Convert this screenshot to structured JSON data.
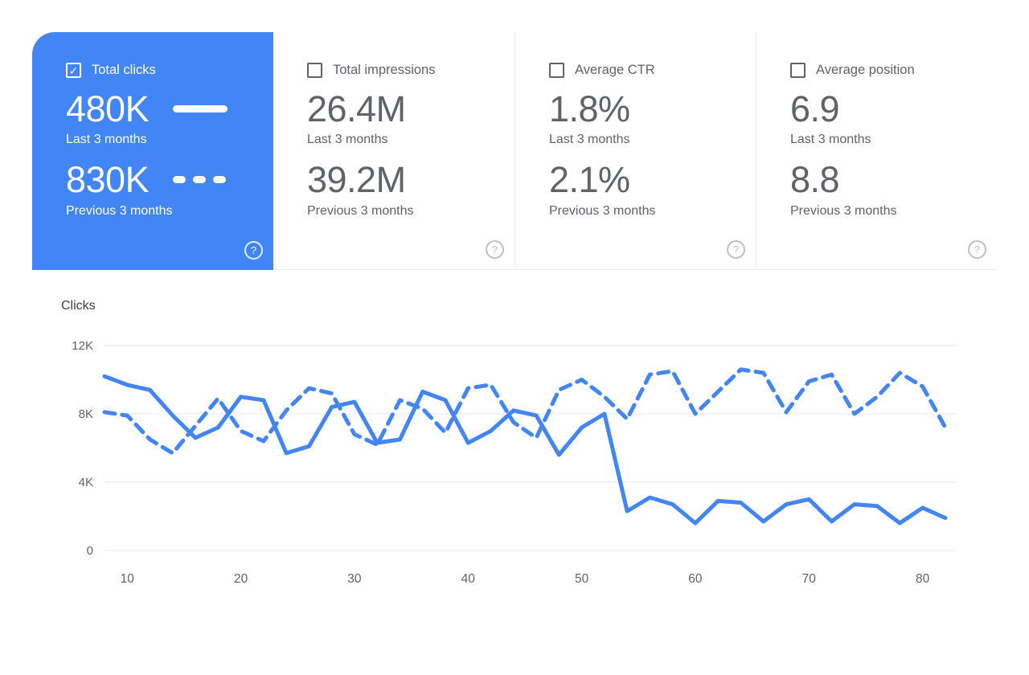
{
  "ui": {
    "check_glyph": "✓",
    "help_glyph": "?"
  },
  "colors": {
    "accent": "#4285f4",
    "muted_text": "#5f6368",
    "grid": "#e8eaed",
    "selected_card_bg": "#4285f4"
  },
  "cards": [
    {
      "label": "Total clicks",
      "checked": true,
      "selected": true,
      "primary_value": "480K",
      "primary_caption": "Last 3 months",
      "secondary_value": "830K",
      "secondary_caption": "Previous 3 months"
    },
    {
      "label": "Total impressions",
      "checked": false,
      "selected": false,
      "primary_value": "26.4M",
      "primary_caption": "Last 3 months",
      "secondary_value": "39.2M",
      "secondary_caption": "Previous 3 months"
    },
    {
      "label": "Average CTR",
      "checked": false,
      "selected": false,
      "primary_value": "1.8%",
      "primary_caption": "Last 3 months",
      "secondary_value": "2.1%",
      "secondary_caption": "Previous 3 months"
    },
    {
      "label": "Average position",
      "checked": false,
      "selected": false,
      "primary_value": "6.9",
      "primary_caption": "Last 3 months",
      "secondary_value": "8.8",
      "secondary_caption": "Previous 3 months"
    }
  ],
  "chart_data": {
    "type": "line",
    "title": "Clicks",
    "ylabel": "Clicks",
    "xlabel": "",
    "grid": true,
    "line_color": "#4285f4",
    "xlim": [
      8,
      83
    ],
    "ylim": [
      0,
      12000
    ],
    "x_ticks": [
      10,
      20,
      30,
      40,
      50,
      60,
      70,
      80
    ],
    "y_ticks": [
      "0",
      "4K",
      "8K",
      "12K"
    ],
    "y_tick_values": [
      0,
      4000,
      8000,
      12000
    ],
    "x": [
      8,
      10,
      12,
      14,
      16,
      18,
      20,
      22,
      24,
      26,
      28,
      30,
      32,
      34,
      36,
      38,
      40,
      42,
      44,
      46,
      48,
      50,
      52,
      54,
      56,
      58,
      60,
      62,
      64,
      66,
      68,
      70,
      72,
      74,
      76,
      78,
      80,
      82
    ],
    "series": [
      {
        "name": "Last 3 months",
        "style": "solid",
        "values": [
          10200,
          9700,
          9400,
          7900,
          6600,
          7200,
          9000,
          8800,
          5700,
          6100,
          8400,
          8700,
          6300,
          6500,
          9300,
          8800,
          6300,
          7000,
          8200,
          7900,
          5600,
          7200,
          8000,
          2300,
          3100,
          2700,
          1600,
          2900,
          2800,
          1700,
          2700,
          3000,
          1700,
          2700,
          2600,
          1600,
          2500,
          1900
        ]
      },
      {
        "name": "Previous 3 months",
        "style": "dashed",
        "values": [
          8100,
          7900,
          6500,
          5700,
          7300,
          8900,
          7000,
          6400,
          8200,
          9500,
          9200,
          6800,
          6200,
          8800,
          8300,
          6900,
          9500,
          9700,
          7500,
          6600,
          9400,
          10000,
          9000,
          7700,
          10300,
          10500,
          8000,
          9300,
          10600,
          10400,
          8100,
          9900,
          10300,
          8000,
          9000,
          10400,
          9600,
          7200
        ]
      }
    ]
  }
}
